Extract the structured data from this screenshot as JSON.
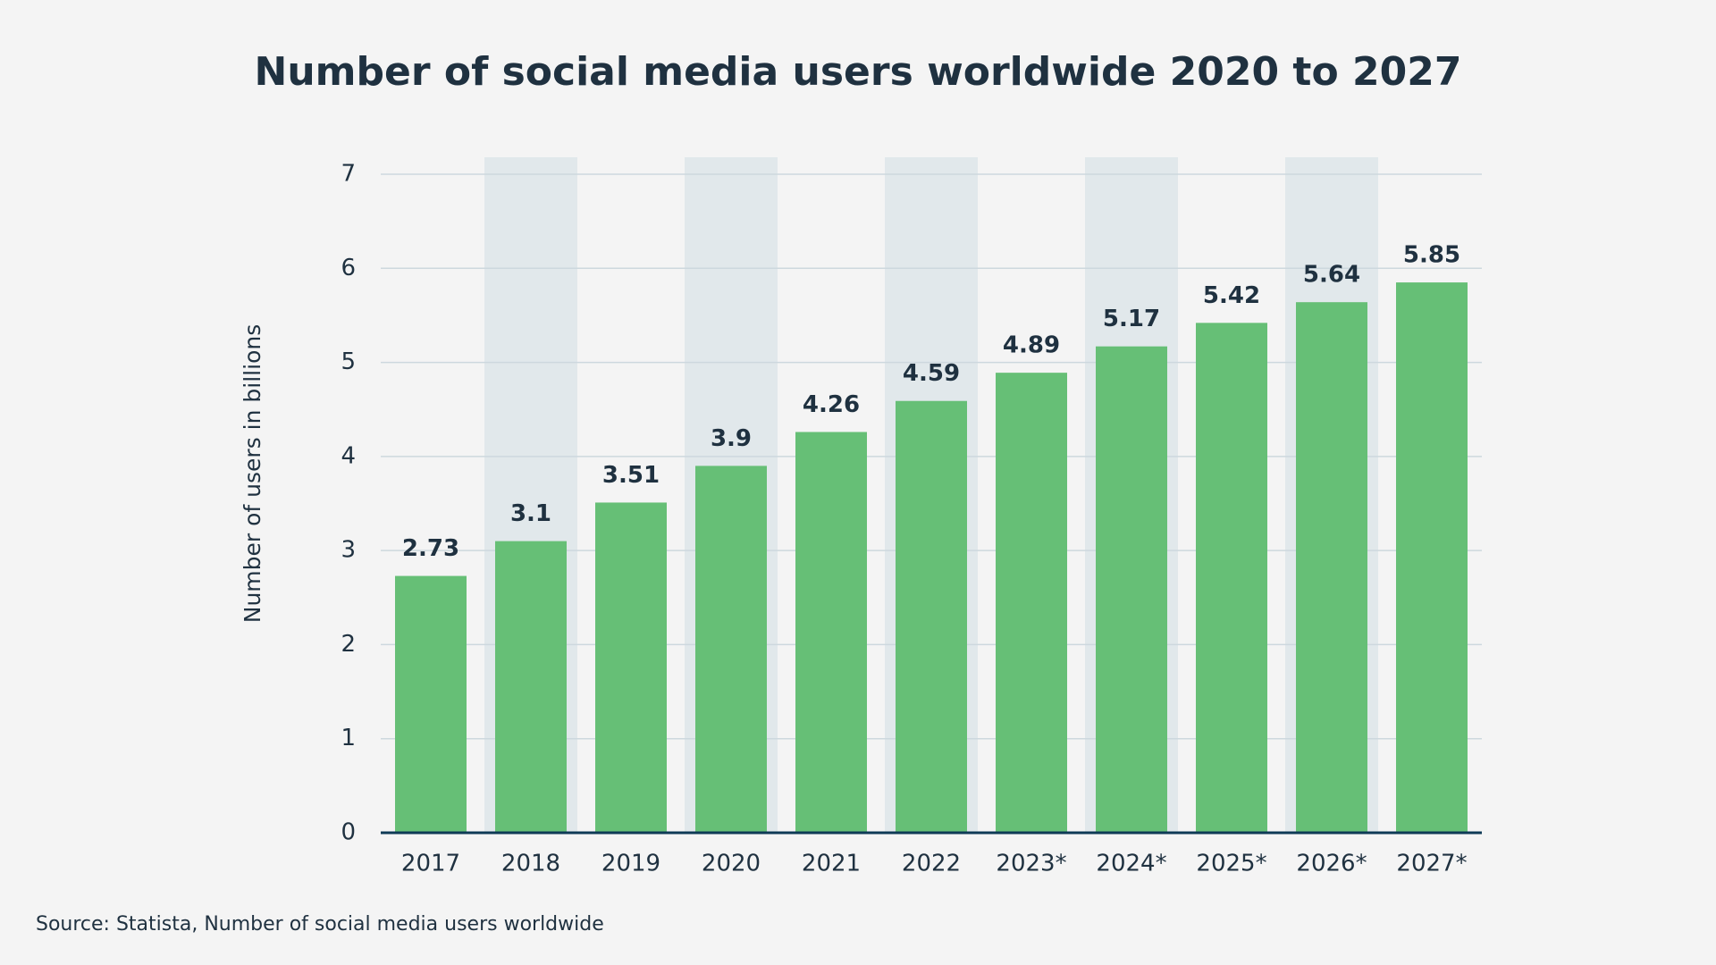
{
  "chart_data": {
    "type": "bar",
    "title": "Number of social media users worldwide 2020 to 2027",
    "y_label": "Number of users in billions",
    "source": "Source: Statista, Number of social media users worldwide",
    "categories": [
      "2017",
      "2018",
      "2019",
      "2020",
      "2021",
      "2022",
      "2023*",
      "2024*",
      "2025*",
      "2026*",
      "2027*"
    ],
    "values": [
      2.73,
      3.1,
      3.51,
      3.9,
      4.26,
      4.59,
      4.89,
      5.17,
      5.42,
      5.64,
      5.85
    ],
    "color": "#66bf76",
    "ylim": [
      0,
      7
    ],
    "yticks": [
      0,
      1,
      2,
      3,
      4,
      5,
      6,
      7
    ],
    "grid": true
  }
}
